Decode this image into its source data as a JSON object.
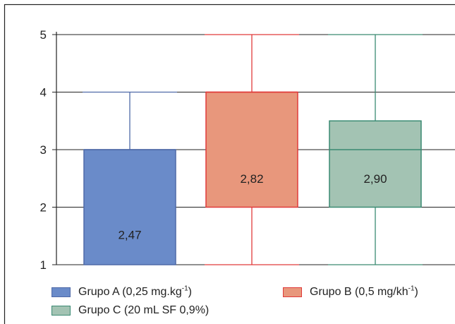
{
  "chart_data": {
    "type": "box",
    "ylim": [
      1,
      5
    ],
    "yticks": [
      "1",
      "2",
      "3",
      "4",
      "5"
    ],
    "grid": true,
    "legend_placement": "bottom",
    "series": [
      {
        "name": "Grupo A (0,25 mg.kg-1)",
        "legend_main": "Grupo A (0,25 mg.kg",
        "legend_sup": "-1",
        "legend_tail": ")",
        "min": 1,
        "q1": 1,
        "median": 3,
        "q3": 3,
        "max": 4,
        "mean_label": "2,47",
        "fill": "#6a8bc9",
        "stroke": "#4f6aa8"
      },
      {
        "name": "Grupo B (0,5 mg/kh-1)",
        "legend_main": "Grupo B (0,5 mg/kh",
        "legend_sup": "-1",
        "legend_tail": ")",
        "min": 1,
        "q1": 2,
        "median": 4,
        "q3": 4,
        "max": 5,
        "mean_label": "2,82",
        "fill": "#e8977c",
        "stroke": "#e03a3a"
      },
      {
        "name": "Grupo C (20 mL SF 0,9%)",
        "legend_main": "Grupo C (20 mL SF 0,9%)",
        "legend_sup": "",
        "legend_tail": "",
        "min": 1,
        "q1": 2,
        "median": 3,
        "q3": 3.5,
        "max": 5,
        "mean_label": "2,90",
        "fill": "#a3c3b3",
        "stroke": "#3a8a72"
      }
    ]
  }
}
